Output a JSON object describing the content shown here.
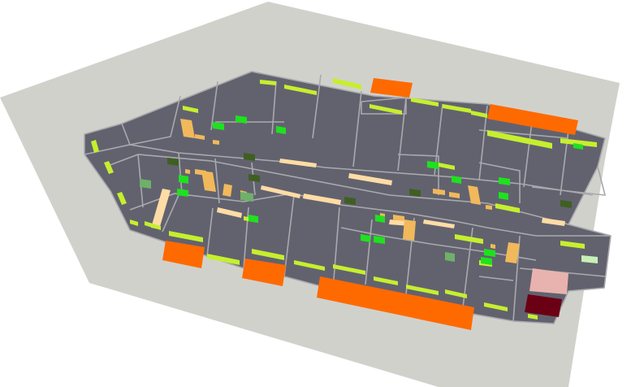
{
  "scene": {
    "kind": "isometric-floor-plan",
    "colors": {
      "background": "#ffffff",
      "site": "#d1d1cc",
      "floor": "#62626f",
      "wall": "#a9a9ad",
      "desk": "#ffdca5",
      "desk_orange": "#f1b95b",
      "lime": "#c6ef2e",
      "green": "#1fe11f",
      "dark_green": "#3f5f22",
      "soft_green": "#6fb06a",
      "orange": "#ff6a00",
      "pink": "#e8b3ae",
      "maroon": "#6b0014",
      "pale_green": "#c7f0b7"
    }
  }
}
